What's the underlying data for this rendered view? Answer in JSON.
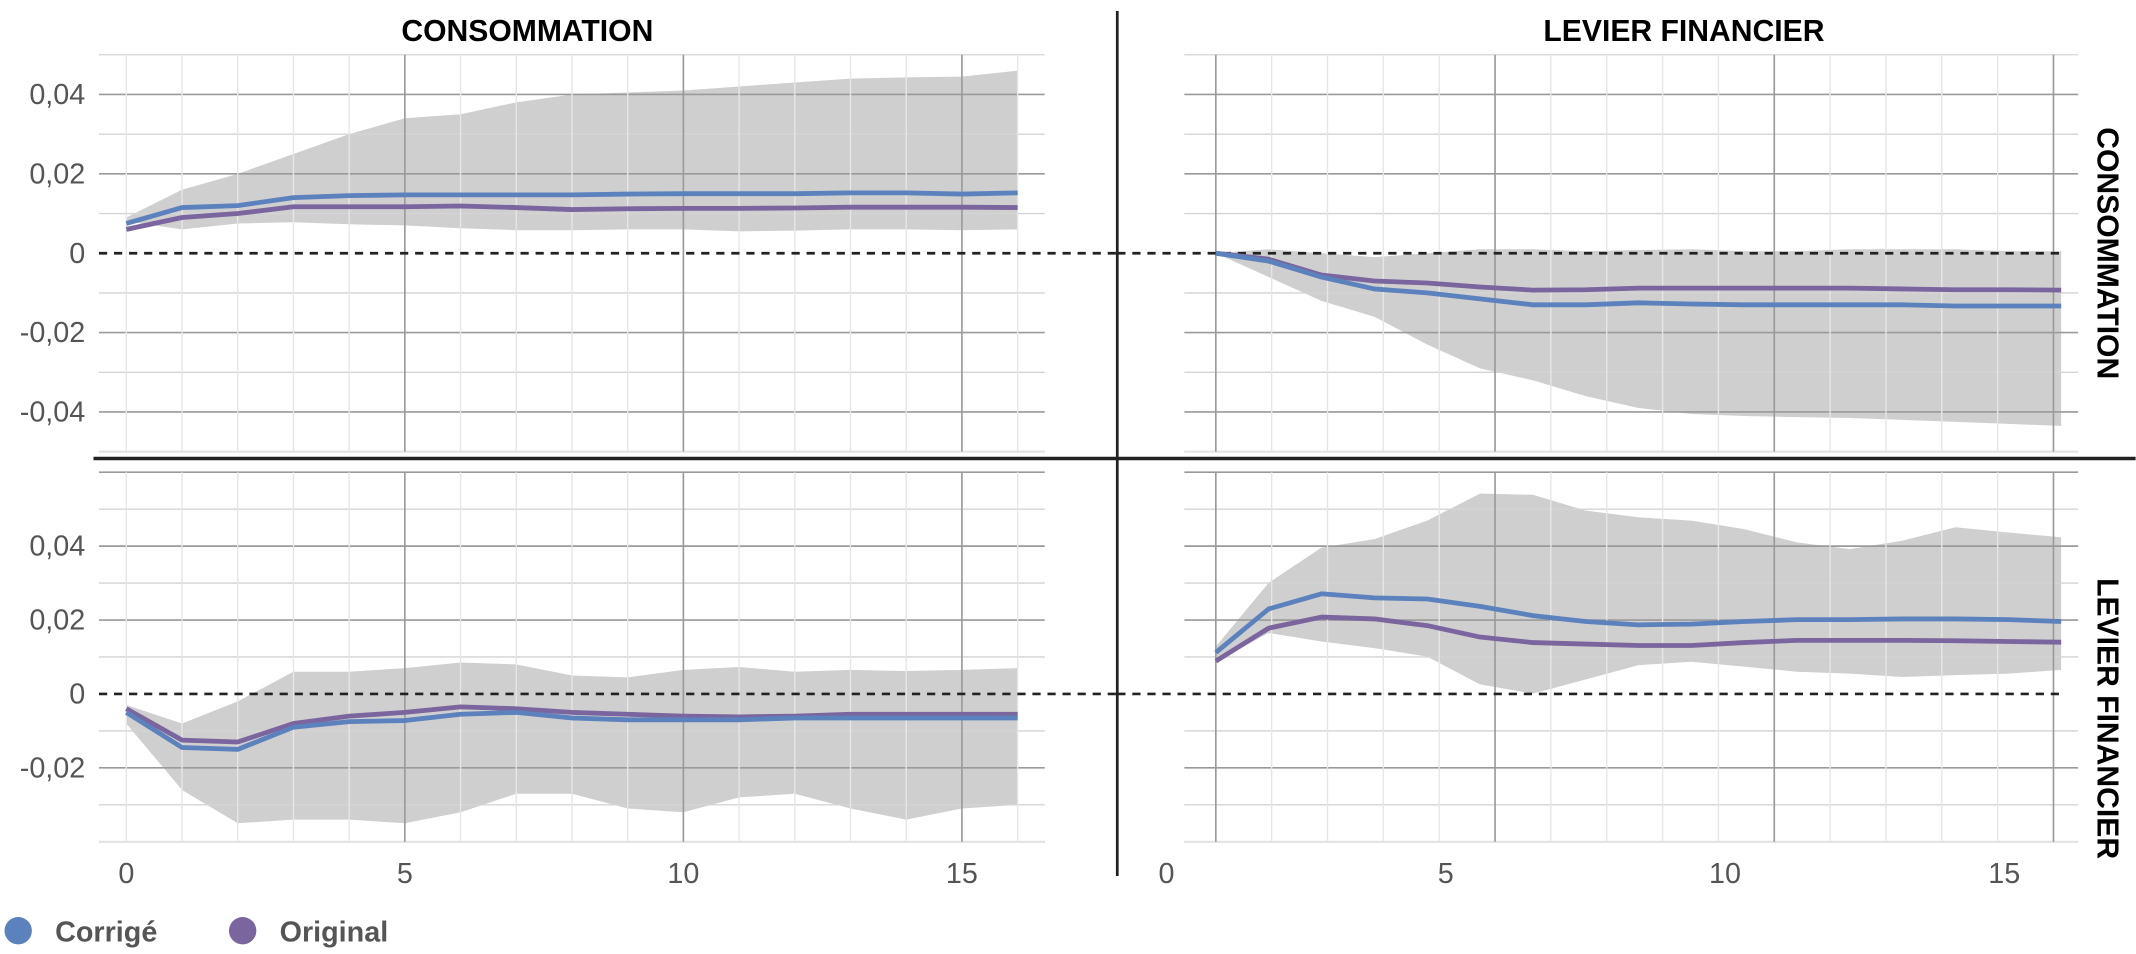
{
  "colors": {
    "corrige": "#5b82bd",
    "original": "#7a659e",
    "band": "#cfcfcf"
  },
  "legend": [
    {
      "label": "Corrigé",
      "color": "#5b82bd"
    },
    {
      "label": "Original",
      "color": "#7a659e"
    }
  ],
  "column_titles": [
    "CONSOMMATION",
    "LEVIER FINANCIER"
  ],
  "row_titles": [
    "CONSOMMATION",
    "LEVIER FINANCIER"
  ],
  "chart_data": [
    {
      "type": "line",
      "title": "CONSOMMATION → CONSOMMATION",
      "x": [
        0,
        1,
        2,
        3,
        4,
        5,
        6,
        7,
        8,
        9,
        10,
        11,
        12,
        13,
        14,
        15,
        16
      ],
      "xticks": [
        "0",
        "5",
        "10",
        "15"
      ],
      "xtick_values": [
        0,
        5,
        10,
        15
      ],
      "yticks": [
        "0,04",
        "0,02",
        "0",
        "-0,02",
        "-0,04"
      ],
      "ytick_values": [
        0.04,
        0.02,
        0,
        -0.02,
        -0.04
      ],
      "ylim": [
        -0.05,
        0.05
      ],
      "series": [
        {
          "name": "Corrigé",
          "values": [
            0.0075,
            0.0115,
            0.012,
            0.014,
            0.0145,
            0.0147,
            0.0147,
            0.0147,
            0.0147,
            0.0149,
            0.015,
            0.015,
            0.015,
            0.0152,
            0.0152,
            0.0149,
            0.0152
          ]
        },
        {
          "name": "Original",
          "values": [
            0.006,
            0.009,
            0.01,
            0.0117,
            0.0117,
            0.0117,
            0.0119,
            0.0115,
            0.011,
            0.0112,
            0.0113,
            0.0113,
            0.0114,
            0.0116,
            0.0116,
            0.0116,
            0.0115
          ]
        }
      ],
      "band_upper": [
        0.009,
        0.016,
        0.02,
        0.025,
        0.03,
        0.034,
        0.035,
        0.038,
        0.04,
        0.0405,
        0.041,
        0.042,
        0.043,
        0.044,
        0.0443,
        0.0445,
        0.046
      ],
      "band_lower": [
        0.008,
        0.006,
        0.0075,
        0.0078,
        0.0073,
        0.007,
        0.0063,
        0.0058,
        0.0058,
        0.006,
        0.006,
        0.0055,
        0.0057,
        0.006,
        0.006,
        0.0058,
        0.006
      ]
    },
    {
      "type": "line",
      "title": "LEVIER FINANCIER → CONSOMMATION",
      "x": [
        0,
        1,
        2,
        3,
        4,
        5,
        6,
        7,
        8,
        9,
        10,
        11,
        12,
        13,
        14,
        15,
        16
      ],
      "xticks": [],
      "xtick_values": [],
      "yticks": [],
      "ytick_values": [],
      "ylim": [
        -0.05,
        0.05
      ],
      "series": [
        {
          "name": "Corrigé",
          "values": [
            0,
            -0.002,
            -0.006,
            -0.009,
            -0.01,
            -0.0115,
            -0.013,
            -0.013,
            -0.0125,
            -0.0128,
            -0.013,
            -0.013,
            -0.013,
            -0.013,
            -0.0133,
            -0.0133,
            -0.0133
          ]
        },
        {
          "name": "Original",
          "values": [
            0,
            -0.0015,
            -0.0055,
            -0.007,
            -0.0075,
            -0.0085,
            -0.0093,
            -0.0092,
            -0.0088,
            -0.0088,
            -0.0088,
            -0.0088,
            -0.0088,
            -0.009,
            -0.0092,
            -0.0092,
            -0.0093
          ]
        }
      ],
      "band_upper": [
        0,
        0.001,
        0,
        -0.001,
        0,
        0.001,
        0.001,
        0.0005,
        0.0008,
        0.001,
        0.0005,
        0.0005,
        0.001,
        0.001,
        0.001,
        0.0005,
        0.0005
      ],
      "band_lower": [
        0,
        -0.006,
        -0.012,
        -0.016,
        -0.023,
        -0.029,
        -0.032,
        -0.036,
        -0.039,
        -0.0405,
        -0.041,
        -0.0413,
        -0.0415,
        -0.042,
        -0.0425,
        -0.043,
        -0.0435
      ]
    },
    {
      "type": "line",
      "title": "CONSOMMATION → LEVIER FINANCIER",
      "x": [
        0,
        1,
        2,
        3,
        4,
        5,
        6,
        7,
        8,
        9,
        10,
        11,
        12,
        13,
        14,
        15,
        16
      ],
      "xticks": [
        "0",
        "5",
        "10",
        "15"
      ],
      "xtick_values": [
        0,
        5,
        10,
        15
      ],
      "yticks": [
        "0,04",
        "0,02",
        "0",
        "-0,02"
      ],
      "ytick_values": [
        0.04,
        0.02,
        0,
        -0.02
      ],
      "ylim": [
        -0.04,
        0.06
      ],
      "series": [
        {
          "name": "Corrigé",
          "values": [
            -0.005,
            -0.0145,
            -0.015,
            -0.009,
            -0.0075,
            -0.0072,
            -0.0055,
            -0.005,
            -0.0065,
            -0.007,
            -0.007,
            -0.007,
            -0.0065,
            -0.0065,
            -0.0065,
            -0.0065,
            -0.0065
          ]
        },
        {
          "name": "Original",
          "values": [
            -0.004,
            -0.0125,
            -0.013,
            -0.008,
            -0.006,
            -0.005,
            -0.0035,
            -0.004,
            -0.005,
            -0.0055,
            -0.006,
            -0.0062,
            -0.006,
            -0.0055,
            -0.0055,
            -0.0055,
            -0.0055
          ]
        }
      ],
      "band_upper": [
        -0.003,
        -0.008,
        -0.002,
        0.006,
        0.006,
        0.007,
        0.0085,
        0.008,
        0.005,
        0.0045,
        0.0065,
        0.0073,
        0.006,
        0.0065,
        0.0062,
        0.0065,
        0.007
      ],
      "band_lower": [
        -0.008,
        -0.026,
        -0.035,
        -0.034,
        -0.034,
        -0.035,
        -0.032,
        -0.027,
        -0.027,
        -0.031,
        -0.032,
        -0.028,
        -0.027,
        -0.031,
        -0.034,
        -0.031,
        -0.03
      ]
    },
    {
      "type": "line",
      "title": "LEVIER FINANCIER → LEVIER FINANCIER",
      "x": [
        0,
        1,
        2,
        3,
        4,
        5,
        6,
        7,
        8,
        9,
        10,
        11,
        12,
        13,
        14,
        15,
        16
      ],
      "xticks": [
        "0",
        "5",
        "10",
        "15"
      ],
      "xtick_values": [
        0,
        5,
        10,
        15
      ],
      "yticks": [],
      "ytick_values": [],
      "ylim": [
        -0.04,
        0.06
      ],
      "series": [
        {
          "name": "Corrigé",
          "values": [
            0.0112,
            0.023,
            0.0271,
            0.026,
            0.0257,
            0.0237,
            0.0212,
            0.0196,
            0.0187,
            0.0189,
            0.0196,
            0.0201,
            0.0201,
            0.0203,
            0.0203,
            0.0201,
            0.0196
          ]
        },
        {
          "name": "Original",
          "values": [
            0.0089,
            0.0178,
            0.0208,
            0.0203,
            0.0185,
            0.0154,
            0.0139,
            0.0135,
            0.0131,
            0.0131,
            0.0139,
            0.0145,
            0.0145,
            0.0145,
            0.0144,
            0.0142,
            0.014
          ]
        }
      ],
      "band_upper": [
        0.0128,
        0.0301,
        0.0396,
        0.0419,
        0.0469,
        0.0542,
        0.0539,
        0.0496,
        0.0478,
        0.0469,
        0.0446,
        0.041,
        0.0392,
        0.0415,
        0.0451,
        0.0437,
        0.0424
      ],
      "band_lower": [
        0.0087,
        0.0165,
        0.0142,
        0.0124,
        0.0101,
        0.0026,
        0.0001,
        0.0039,
        0.0078,
        0.0087,
        0.0074,
        0.006,
        0.0055,
        0.0046,
        0.0051,
        0.0055,
        0.0065
      ]
    }
  ]
}
